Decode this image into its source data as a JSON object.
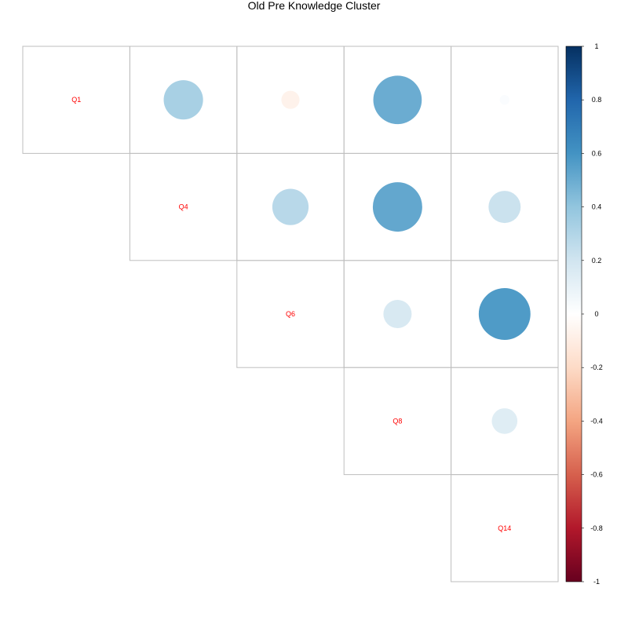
{
  "chart_data": {
    "type": "heatmap",
    "subtype": "correlation-circle-upper",
    "title": "Old Pre Knowledge Cluster",
    "variables": [
      "Q1",
      "Q4",
      "Q6",
      "Q8",
      "Q14"
    ],
    "cells": [
      {
        "row": "Q1",
        "col": "Q4",
        "value": 0.33
      },
      {
        "row": "Q1",
        "col": "Q6",
        "value": -0.07
      },
      {
        "row": "Q1",
        "col": "Q8",
        "value": 0.5
      },
      {
        "row": "Q1",
        "col": "Q14",
        "value": 0.02
      },
      {
        "row": "Q4",
        "col": "Q6",
        "value": 0.28
      },
      {
        "row": "Q4",
        "col": "Q8",
        "value": 0.52
      },
      {
        "row": "Q4",
        "col": "Q14",
        "value": 0.22
      },
      {
        "row": "Q6",
        "col": "Q8",
        "value": 0.17
      },
      {
        "row": "Q6",
        "col": "Q14",
        "value": 0.57
      },
      {
        "row": "Q8",
        "col": "Q14",
        "value": 0.14
      }
    ],
    "colorbar": {
      "range": [
        -1,
        1
      ],
      "ticks": [
        "1",
        "0.8",
        "0.6",
        "0.4",
        "0.2",
        "0",
        "-0.2",
        "-0.4",
        "-0.6",
        "-0.8",
        "-1"
      ],
      "tick_values": [
        1,
        0.8,
        0.6,
        0.4,
        0.2,
        0,
        -0.2,
        -0.4,
        -0.6,
        -0.8,
        -1
      ],
      "palette": [
        "#67001F",
        "#B2182B",
        "#D6604D",
        "#F4A582",
        "#FDDBC7",
        "#FFFFFF",
        "#D1E5F0",
        "#92C5DE",
        "#4393C3",
        "#2166AC",
        "#053061"
      ]
    },
    "label_color": "#ff0000",
    "grid_color": "#bebebe"
  }
}
